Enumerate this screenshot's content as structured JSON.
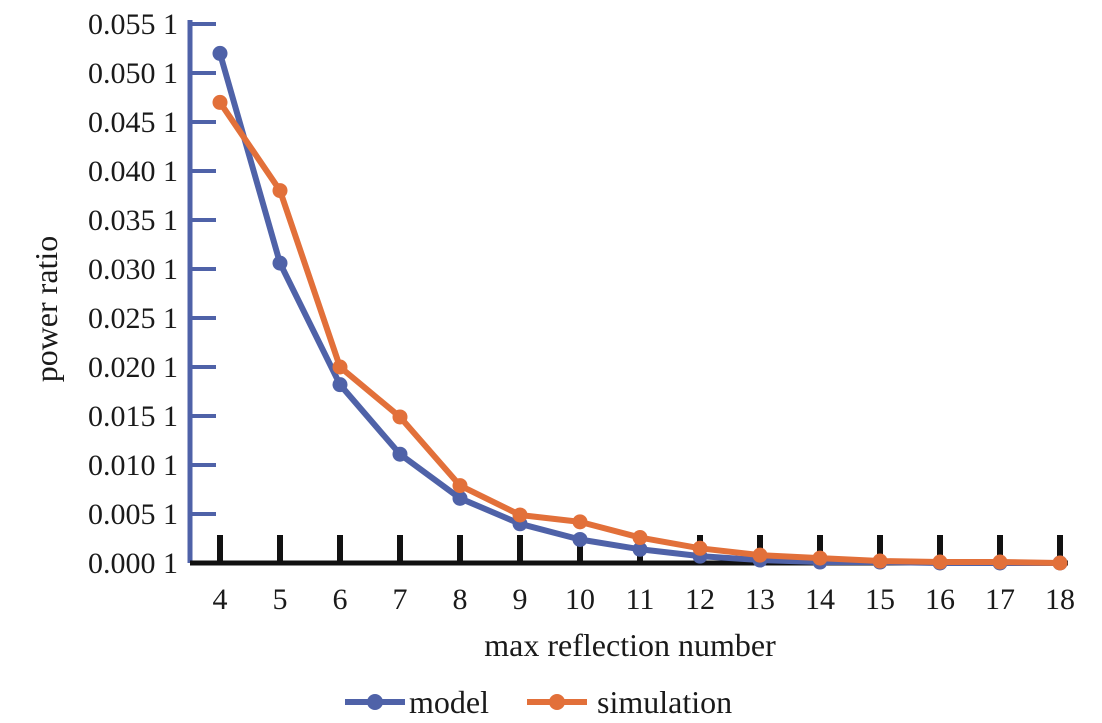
{
  "chart_data": {
    "type": "line",
    "title": "",
    "xlabel": "max reflection number",
    "ylabel": "power ratio",
    "x": [
      4,
      5,
      6,
      7,
      8,
      9,
      10,
      11,
      12,
      13,
      14,
      15,
      16,
      17,
      18
    ],
    "xlim": [
      4,
      18
    ],
    "ylim": [
      0.0001,
      0.0551
    ],
    "y_ticks": [
      0.0001,
      0.0051,
      0.0101,
      0.0151,
      0.0201,
      0.0251,
      0.0301,
      0.0351,
      0.0401,
      0.0451,
      0.0501,
      0.0551
    ],
    "y_tick_labels": [
      "0.000 1",
      "0.005 1",
      "0.010 1",
      "0.015 1",
      "0.020 1",
      "0.025 1",
      "0.030 1",
      "0.035 1",
      "0.040 1",
      "0.045 1",
      "0.050 1",
      "0.055 1"
    ],
    "x_tick_labels": [
      "4",
      "5",
      "6",
      "7",
      "8",
      "9",
      "10",
      "11",
      "12",
      "13",
      "14",
      "15",
      "16",
      "17",
      "18"
    ],
    "legend_position": "bottom-center",
    "grid": false,
    "series": [
      {
        "name": "model",
        "color": "#4f62a8",
        "values": [
          0.0521,
          0.0307,
          0.0183,
          0.0112,
          0.0067,
          0.0041,
          0.0025,
          0.0015,
          0.0008,
          0.0004,
          0.0002,
          0.0002,
          0.0001,
          0.0001,
          0.0001
        ]
      },
      {
        "name": "simulation",
        "color": "#e2703a",
        "values": [
          0.0471,
          0.0381,
          0.0201,
          0.015,
          0.008,
          0.005,
          0.0043,
          0.0027,
          0.0016,
          0.0009,
          0.0006,
          0.0003,
          0.0002,
          0.0002,
          0.0001
        ]
      }
    ]
  }
}
